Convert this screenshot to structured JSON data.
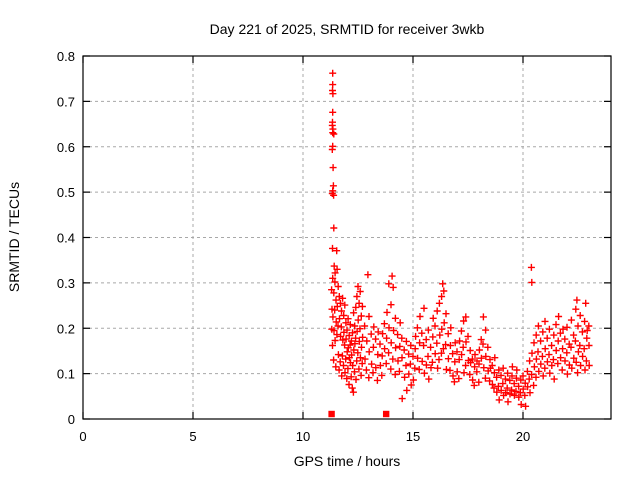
{
  "chart_data": {
    "type": "scatter",
    "title": "Day 221 of 2025, SRMTID for receiver 3wkb",
    "xlabel": "GPS time / hours",
    "ylabel": "SRMTID / TECUs",
    "xlim": [
      0,
      24
    ],
    "ylim": [
      0,
      0.8
    ],
    "grid": true,
    "legend": "none",
    "marker": "plus",
    "marker_color": "#ff0000",
    "grid_color": "#a8a8a8",
    "axis_color": "#000000",
    "background_color": "#ffffff",
    "x_ticks": {
      "values": [
        0,
        5,
        10,
        15,
        20
      ],
      "labels": [
        "0",
        "5",
        "10",
        "15",
        "20"
      ]
    },
    "y_ticks": {
      "values": [
        0,
        0.1,
        0.2,
        0.3,
        0.4,
        0.5,
        0.6,
        0.7,
        0.8
      ],
      "labels": [
        "0",
        "0.1",
        "0.2",
        "0.3",
        "0.4",
        "0.5",
        "0.6",
        "0.7",
        "0.8"
      ]
    },
    "baseline_markers_x": [
      11.3,
      13.78
    ],
    "points": [
      [
        11.35,
        0.762
      ],
      [
        11.35,
        0.737
      ],
      [
        11.34,
        0.724
      ],
      [
        11.36,
        0.717
      ],
      [
        11.35,
        0.676
      ],
      [
        11.34,
        0.654
      ],
      [
        11.33,
        0.647
      ],
      [
        11.36,
        0.639
      ],
      [
        11.35,
        0.631
      ],
      [
        11.4,
        0.628
      ],
      [
        11.35,
        0.601
      ],
      [
        11.33,
        0.594
      ],
      [
        11.37,
        0.554
      ],
      [
        11.38,
        0.514
      ],
      [
        11.35,
        0.503
      ],
      [
        11.33,
        0.497
      ],
      [
        11.39,
        0.493
      ],
      [
        11.4,
        0.421
      ],
      [
        11.34,
        0.376
      ],
      [
        11.53,
        0.371
      ],
      [
        11.42,
        0.337
      ],
      [
        11.46,
        0.322
      ],
      [
        11.3,
        0.285
      ],
      [
        11.31,
        0.198
      ],
      [
        11.32,
        0.242
      ],
      [
        11.35,
        0.31
      ],
      [
        11.36,
        0.225
      ],
      [
        11.34,
        0.162
      ],
      [
        11.4,
        0.278
      ],
      [
        11.41,
        0.195
      ],
      [
        11.39,
        0.13
      ],
      [
        11.45,
        0.302
      ],
      [
        11.44,
        0.24
      ],
      [
        11.46,
        0.173
      ],
      [
        11.5,
        0.262
      ],
      [
        11.51,
        0.214
      ],
      [
        11.49,
        0.115
      ],
      [
        11.55,
        0.33
      ],
      [
        11.56,
        0.248
      ],
      [
        11.54,
        0.186
      ],
      [
        11.6,
        0.292
      ],
      [
        11.59,
        0.205
      ],
      [
        11.61,
        0.142
      ],
      [
        11.65,
        0.27
      ],
      [
        11.66,
        0.221
      ],
      [
        11.64,
        0.108
      ],
      [
        11.7,
        0.255
      ],
      [
        11.71,
        0.182
      ],
      [
        11.69,
        0.126
      ],
      [
        11.75,
        0.238
      ],
      [
        11.74,
        0.203
      ],
      [
        11.76,
        0.095
      ],
      [
        11.8,
        0.266
      ],
      [
        11.81,
        0.174
      ],
      [
        11.79,
        0.139
      ],
      [
        11.85,
        0.228
      ],
      [
        11.86,
        0.191
      ],
      [
        11.84,
        0.118
      ],
      [
        11.9,
        0.251
      ],
      [
        11.89,
        0.163
      ],
      [
        11.91,
        0.102
      ],
      [
        11.95,
        0.212
      ],
      [
        11.96,
        0.176
      ],
      [
        11.94,
        0.132
      ],
      [
        12.0,
        0.196
      ],
      [
        12.01,
        0.148
      ],
      [
        11.99,
        0.089
      ],
      [
        12.05,
        0.221
      ],
      [
        12.06,
        0.157
      ],
      [
        12.04,
        0.111
      ],
      [
        12.1,
        0.184
      ],
      [
        12.11,
        0.135
      ],
      [
        12.09,
        0.076
      ],
      [
        12.15,
        0.208
      ],
      [
        12.14,
        0.163
      ],
      [
        12.16,
        0.124
      ],
      [
        12.2,
        0.172
      ],
      [
        12.21,
        0.141
      ],
      [
        12.19,
        0.093
      ],
      [
        12.25,
        0.19
      ],
      [
        12.26,
        0.118
      ],
      [
        12.24,
        0.068
      ],
      [
        12.3,
        0.234
      ],
      [
        12.31,
        0.152
      ],
      [
        12.29,
        0.059
      ],
      [
        12.35,
        0.205
      ],
      [
        12.36,
        0.166
      ],
      [
        12.34,
        0.104
      ],
      [
        12.4,
        0.246
      ],
      [
        12.39,
        0.178
      ],
      [
        12.41,
        0.087
      ],
      [
        12.45,
        0.27
      ],
      [
        12.46,
        0.193
      ],
      [
        12.44,
        0.128
      ],
      [
        12.5,
        0.292
      ],
      [
        12.51,
        0.218
      ],
      [
        12.49,
        0.146
      ],
      [
        12.55,
        0.255
      ],
      [
        12.56,
        0.171
      ],
      [
        12.54,
        0.11
      ],
      [
        12.6,
        0.281
      ],
      [
        12.59,
        0.199
      ],
      [
        12.61,
        0.135
      ],
      [
        12.65,
        0.227
      ],
      [
        12.66,
        0.158
      ],
      [
        12.64,
        0.096
      ],
      [
        12.7,
        0.248
      ],
      [
        12.71,
        0.18
      ],
      [
        12.69,
        0.122
      ],
      [
        12.8,
        0.205
      ],
      [
        12.82,
        0.132
      ],
      [
        12.9,
        0.172
      ],
      [
        12.88,
        0.108
      ],
      [
        12.95,
        0.318
      ],
      [
        13.0,
        0.226
      ],
      [
        13.01,
        0.148
      ],
      [
        12.99,
        0.091
      ],
      [
        13.1,
        0.187
      ],
      [
        13.12,
        0.121
      ],
      [
        13.2,
        0.158
      ],
      [
        13.18,
        0.102
      ],
      [
        13.22,
        0.203
      ],
      [
        13.3,
        0.176
      ],
      [
        13.31,
        0.113
      ],
      [
        13.4,
        0.142
      ],
      [
        13.38,
        0.085
      ],
      [
        13.42,
        0.192
      ],
      [
        13.5,
        0.165
      ],
      [
        13.52,
        0.118
      ],
      [
        13.6,
        0.139
      ],
      [
        13.58,
        0.096
      ],
      [
        13.62,
        0.188
      ],
      [
        13.7,
        0.21
      ],
      [
        13.71,
        0.155
      ],
      [
        13.8,
        0.178
      ],
      [
        13.78,
        0.122
      ],
      [
        13.82,
        0.235
      ],
      [
        13.9,
        0.298
      ],
      [
        13.91,
        0.201
      ],
      [
        13.89,
        0.146
      ],
      [
        14.0,
        0.252
      ],
      [
        14.01,
        0.168
      ],
      [
        13.99,
        0.11
      ],
      [
        14.05,
        0.315
      ],
      [
        14.1,
        0.29
      ],
      [
        14.12,
        0.195
      ],
      [
        14.08,
        0.132
      ],
      [
        14.2,
        0.222
      ],
      [
        14.21,
        0.157
      ],
      [
        14.19,
        0.098
      ],
      [
        14.3,
        0.186
      ],
      [
        14.32,
        0.128
      ],
      [
        14.4,
        0.16
      ],
      [
        14.38,
        0.105
      ],
      [
        14.42,
        0.212
      ],
      [
        14.5,
        0.135
      ],
      [
        14.51,
        0.045
      ],
      [
        14.49,
        0.178
      ],
      [
        14.6,
        0.152
      ],
      [
        14.62,
        0.092
      ],
      [
        14.7,
        0.171
      ],
      [
        14.68,
        0.118
      ],
      [
        14.72,
        0.063
      ],
      [
        14.8,
        0.143
      ],
      [
        14.81,
        0.099
      ],
      [
        14.9,
        0.162
      ],
      [
        14.88,
        0.121
      ],
      [
        14.92,
        0.075
      ],
      [
        15.0,
        0.138
      ],
      [
        15.02,
        0.086
      ],
      [
        15.1,
        0.155
      ],
      [
        15.08,
        0.112
      ],
      [
        15.12,
        0.182
      ],
      [
        15.2,
        0.201
      ],
      [
        15.21,
        0.134
      ],
      [
        15.3,
        0.168
      ],
      [
        15.28,
        0.109
      ],
      [
        15.32,
        0.226
      ],
      [
        15.4,
        0.189
      ],
      [
        15.42,
        0.127
      ],
      [
        15.5,
        0.244
      ],
      [
        15.48,
        0.162
      ],
      [
        15.52,
        0.101
      ],
      [
        15.6,
        0.175
      ],
      [
        15.61,
        0.119
      ],
      [
        15.7,
        0.196
      ],
      [
        15.68,
        0.138
      ],
      [
        15.72,
        0.088
      ],
      [
        15.8,
        0.158
      ],
      [
        15.82,
        0.113
      ],
      [
        15.9,
        0.181
      ],
      [
        15.88,
        0.125
      ],
      [
        15.92,
        0.222
      ],
      [
        16.0,
        0.205
      ],
      [
        16.01,
        0.144
      ],
      [
        16.1,
        0.238
      ],
      [
        16.08,
        0.167
      ],
      [
        16.12,
        0.112
      ],
      [
        16.2,
        0.255
      ],
      [
        16.22,
        0.185
      ],
      [
        16.18,
        0.131
      ],
      [
        16.3,
        0.27
      ],
      [
        16.31,
        0.198
      ],
      [
        16.29,
        0.145
      ],
      [
        16.35,
        0.298
      ],
      [
        16.4,
        0.282
      ],
      [
        16.42,
        0.212
      ],
      [
        16.38,
        0.155
      ],
      [
        16.5,
        0.232
      ],
      [
        16.48,
        0.164
      ],
      [
        16.52,
        0.109
      ],
      [
        16.6,
        0.188
      ],
      [
        16.61,
        0.133
      ],
      [
        16.7,
        0.162
      ],
      [
        16.68,
        0.107
      ],
      [
        16.72,
        0.201
      ],
      [
        16.8,
        0.144
      ],
      [
        16.82,
        0.095
      ],
      [
        16.9,
        0.126
      ],
      [
        16.88,
        0.082
      ],
      [
        16.92,
        0.168
      ],
      [
        17.0,
        0.148
      ],
      [
        17.01,
        0.104
      ],
      [
        17.1,
        0.131
      ],
      [
        17.08,
        0.089
      ],
      [
        17.12,
        0.172
      ],
      [
        17.2,
        0.194
      ],
      [
        17.21,
        0.142
      ],
      [
        17.3,
        0.216
      ],
      [
        17.28,
        0.158
      ],
      [
        17.32,
        0.102
      ],
      [
        17.4,
        0.225
      ],
      [
        17.41,
        0.17
      ],
      [
        17.39,
        0.118
      ],
      [
        17.5,
        0.182
      ],
      [
        17.52,
        0.129
      ],
      [
        17.6,
        0.151
      ],
      [
        17.58,
        0.098
      ],
      [
        17.62,
        0.124
      ],
      [
        17.7,
        0.132
      ],
      [
        17.71,
        0.086
      ],
      [
        17.8,
        0.115
      ],
      [
        17.78,
        0.074
      ],
      [
        17.82,
        0.142
      ],
      [
        17.9,
        0.104
      ],
      [
        17.91,
        0.128
      ],
      [
        18.0,
        0.121
      ],
      [
        17.99,
        0.081
      ],
      [
        18.02,
        0.152
      ],
      [
        18.1,
        0.175
      ],
      [
        18.11,
        0.134
      ],
      [
        18.2,
        0.225
      ],
      [
        18.18,
        0.165
      ],
      [
        18.22,
        0.113
      ],
      [
        18.3,
        0.196
      ],
      [
        18.31,
        0.138
      ],
      [
        18.29,
        0.09
      ],
      [
        18.4,
        0.158
      ],
      [
        18.42,
        0.106
      ],
      [
        18.5,
        0.131
      ],
      [
        18.48,
        0.084
      ],
      [
        18.52,
        0.112
      ],
      [
        18.6,
        0.118
      ],
      [
        18.61,
        0.076
      ],
      [
        18.7,
        0.102
      ],
      [
        18.68,
        0.068
      ],
      [
        18.72,
        0.135
      ],
      [
        18.8,
        0.092
      ],
      [
        18.81,
        0.059
      ],
      [
        18.9,
        0.108
      ],
      [
        18.88,
        0.072
      ],
      [
        18.92,
        0.042
      ],
      [
        19.0,
        0.096
      ],
      [
        19.01,
        0.063
      ],
      [
        19.1,
        0.112
      ],
      [
        19.08,
        0.078
      ],
      [
        19.12,
        0.052
      ],
      [
        19.2,
        0.088
      ],
      [
        19.21,
        0.058
      ],
      [
        19.3,
        0.101
      ],
      [
        19.28,
        0.068
      ],
      [
        19.32,
        0.038
      ],
      [
        19.4,
        0.085
      ],
      [
        19.41,
        0.055
      ],
      [
        19.5,
        0.095
      ],
      [
        19.48,
        0.064
      ],
      [
        19.52,
        0.115
      ],
      [
        19.6,
        0.078
      ],
      [
        19.61,
        0.052
      ],
      [
        19.7,
        0.09
      ],
      [
        19.68,
        0.061
      ],
      [
        19.72,
        0.108
      ],
      [
        19.8,
        0.072
      ],
      [
        19.81,
        0.048
      ],
      [
        19.9,
        0.086
      ],
      [
        19.88,
        0.058
      ],
      [
        19.92,
        0.032
      ],
      [
        20.0,
        0.095
      ],
      [
        20.01,
        0.066
      ],
      [
        20.1,
        0.079
      ],
      [
        20.08,
        0.052
      ],
      [
        20.12,
        0.028
      ],
      [
        20.2,
        0.105
      ],
      [
        20.21,
        0.071
      ],
      [
        20.3,
        0.128
      ],
      [
        20.28,
        0.088
      ],
      [
        20.32,
        0.058
      ],
      [
        20.38,
        0.334
      ],
      [
        20.4,
        0.301
      ],
      [
        20.41,
        0.145
      ],
      [
        20.39,
        0.098
      ],
      [
        20.5,
        0.168
      ],
      [
        20.52,
        0.115
      ],
      [
        20.48,
        0.074
      ],
      [
        20.6,
        0.185
      ],
      [
        20.61,
        0.132
      ],
      [
        20.59,
        0.092
      ],
      [
        20.7,
        0.205
      ],
      [
        20.68,
        0.148
      ],
      [
        20.72,
        0.105
      ],
      [
        20.8,
        0.172
      ],
      [
        20.81,
        0.121
      ],
      [
        20.9,
        0.192
      ],
      [
        20.88,
        0.138
      ],
      [
        20.92,
        0.095
      ],
      [
        21.0,
        0.215
      ],
      [
        21.01,
        0.155
      ],
      [
        20.99,
        0.112
      ],
      [
        21.1,
        0.178
      ],
      [
        21.11,
        0.126
      ],
      [
        21.2,
        0.198
      ],
      [
        21.18,
        0.142
      ],
      [
        21.22,
        0.101
      ],
      [
        21.3,
        0.162
      ],
      [
        21.31,
        0.118
      ],
      [
        21.4,
        0.185
      ],
      [
        21.38,
        0.131
      ],
      [
        21.42,
        0.088
      ],
      [
        21.5,
        0.208
      ],
      [
        21.51,
        0.151
      ],
      [
        21.6,
        0.172
      ],
      [
        21.58,
        0.122
      ],
      [
        21.62,
        0.226
      ],
      [
        21.7,
        0.189
      ],
      [
        21.71,
        0.135
      ],
      [
        21.8,
        0.155
      ],
      [
        21.78,
        0.108
      ],
      [
        21.82,
        0.198
      ],
      [
        21.9,
        0.176
      ],
      [
        21.91,
        0.128
      ],
      [
        22.0,
        0.202
      ],
      [
        21.99,
        0.146
      ],
      [
        22.02,
        0.099
      ],
      [
        22.1,
        0.165
      ],
      [
        22.11,
        0.119
      ],
      [
        22.2,
        0.218
      ],
      [
        22.18,
        0.158
      ],
      [
        22.22,
        0.112
      ],
      [
        22.3,
        0.185
      ],
      [
        22.31,
        0.134
      ],
      [
        22.4,
        0.242
      ],
      [
        22.38,
        0.172
      ],
      [
        22.42,
        0.125
      ],
      [
        22.45,
        0.262
      ],
      [
        22.5,
        0.205
      ],
      [
        22.52,
        0.148
      ],
      [
        22.48,
        0.102
      ],
      [
        22.6,
        0.228
      ],
      [
        22.58,
        0.162
      ],
      [
        22.62,
        0.118
      ],
      [
        22.7,
        0.192
      ],
      [
        22.71,
        0.138
      ],
      [
        22.8,
        0.215
      ],
      [
        22.78,
        0.155
      ],
      [
        22.82,
        0.108
      ],
      [
        22.85,
        0.255
      ],
      [
        22.9,
        0.178
      ],
      [
        22.88,
        0.128
      ],
      [
        22.92,
        0.195
      ],
      [
        23.0,
        0.162
      ],
      [
        22.99,
        0.205
      ],
      [
        23.01,
        0.118
      ]
    ]
  }
}
